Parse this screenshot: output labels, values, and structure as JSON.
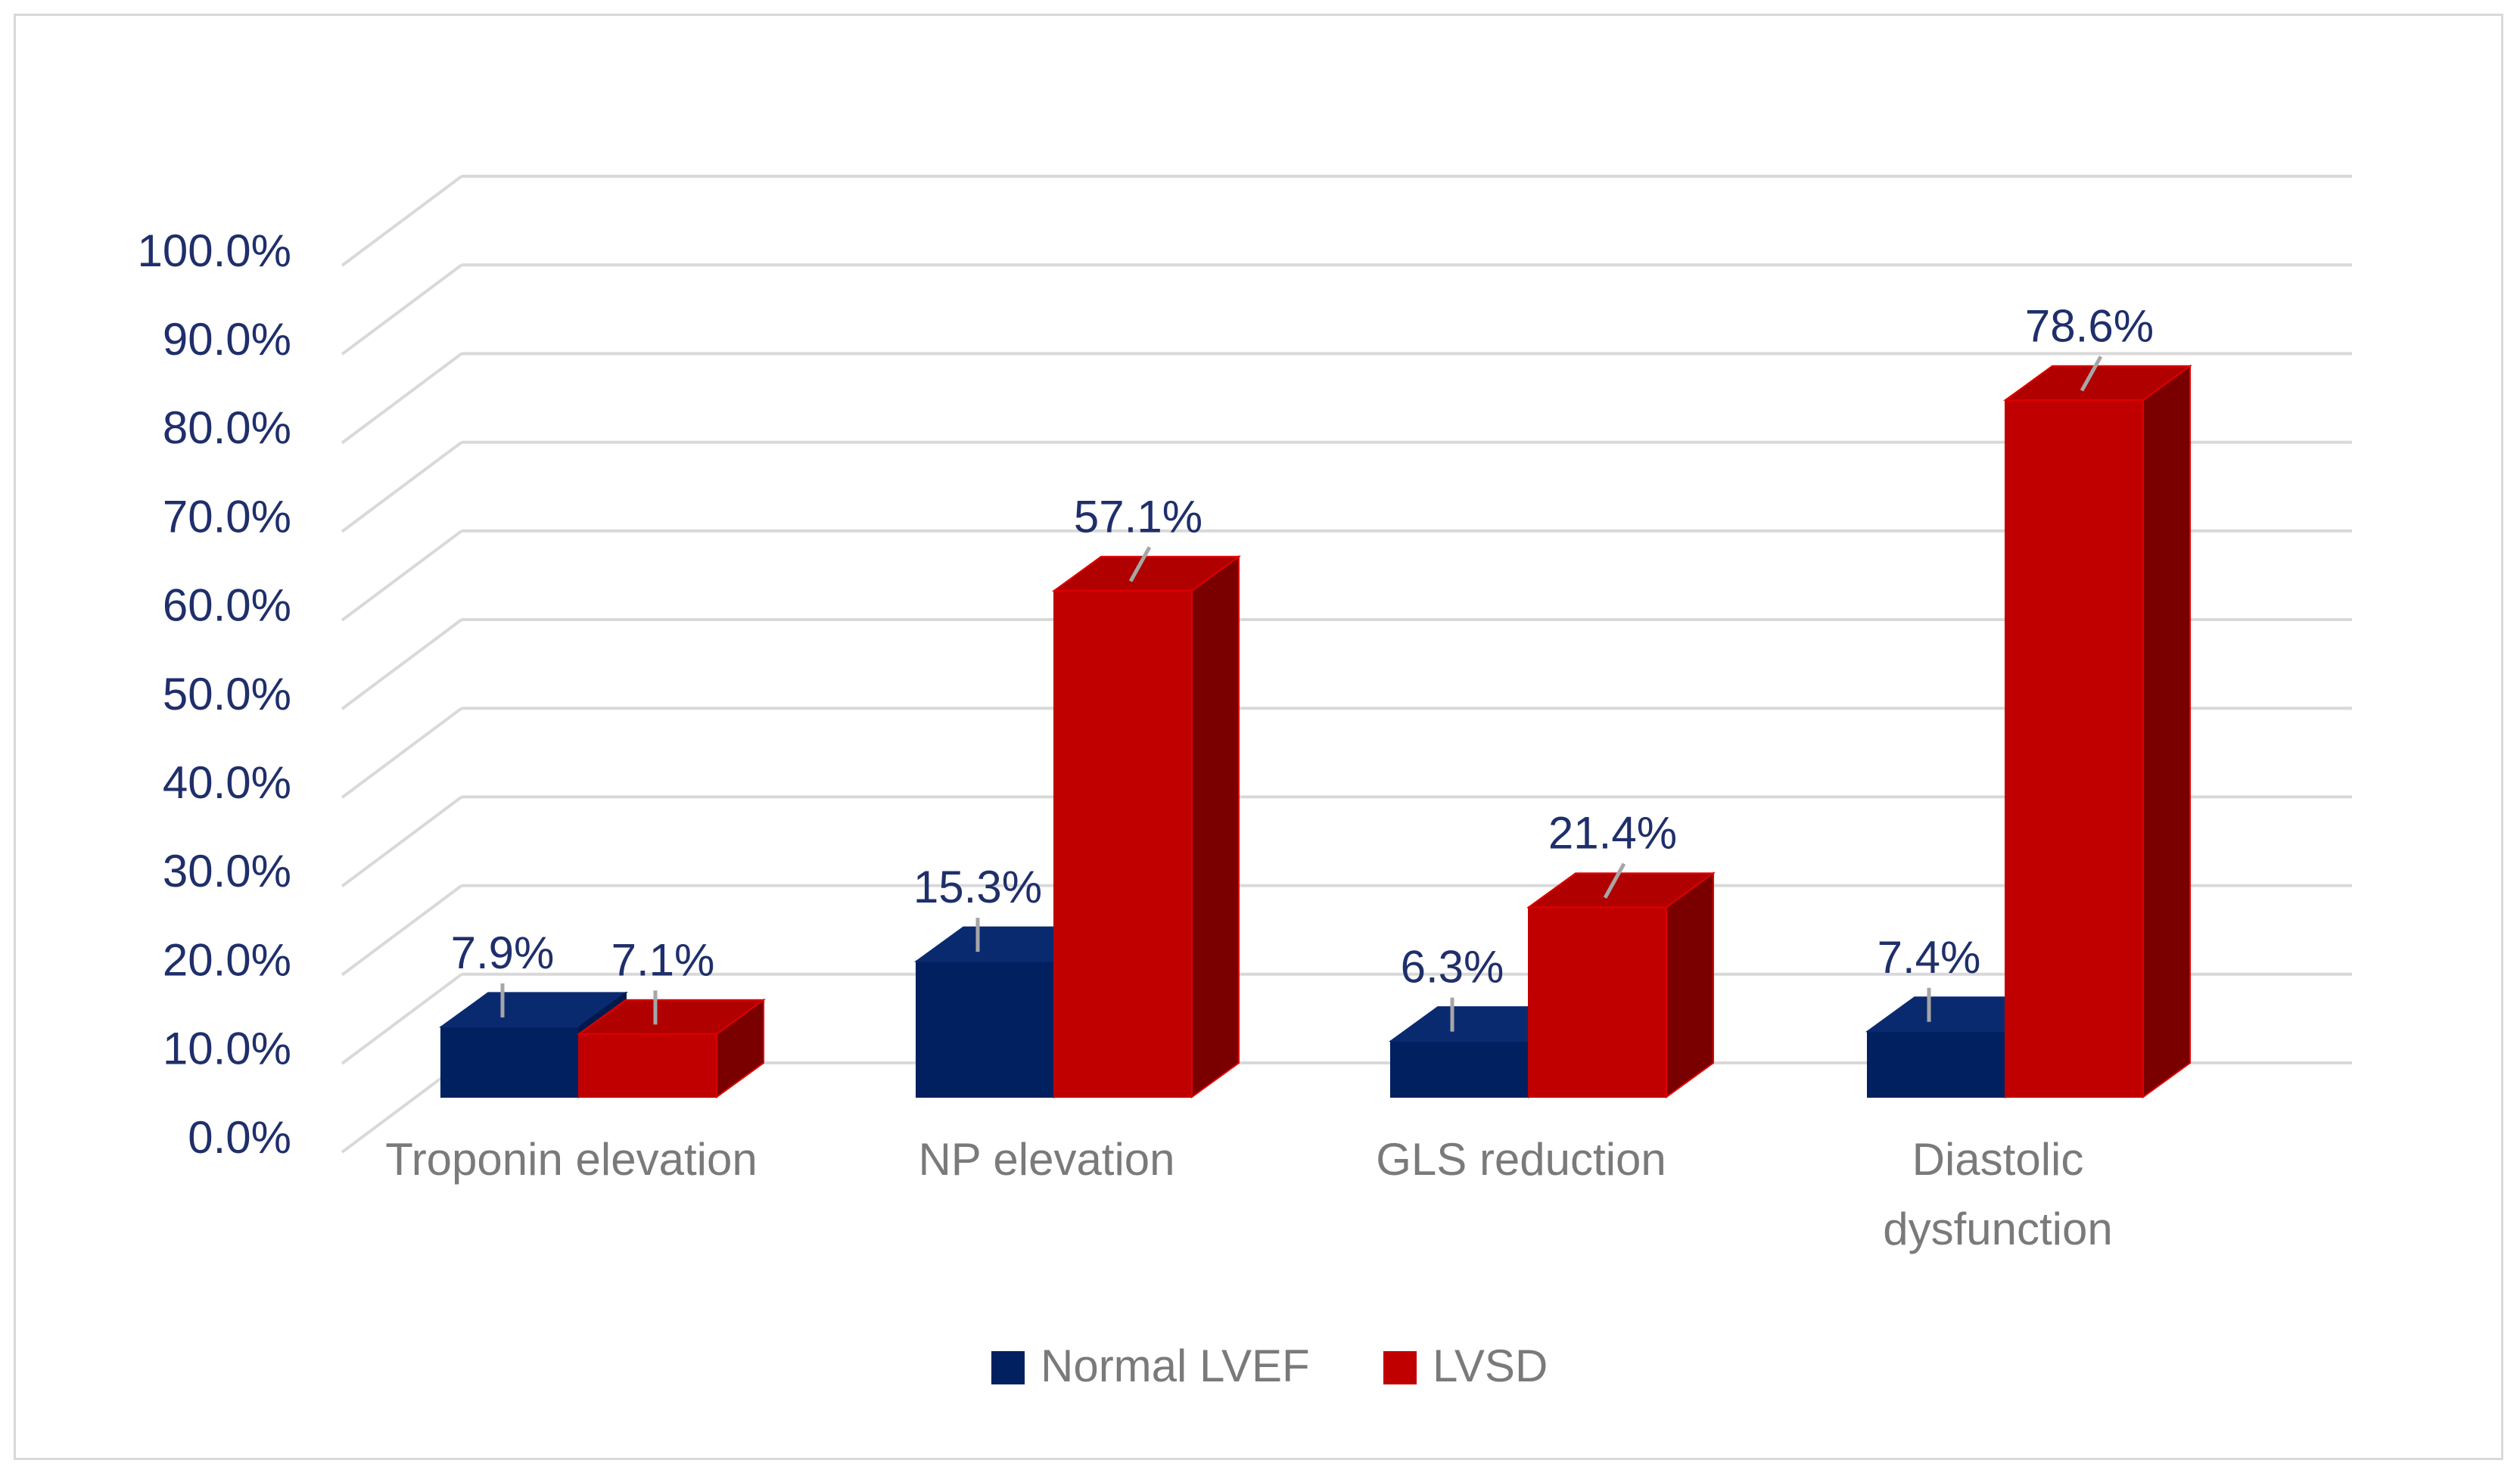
{
  "chart_data": {
    "type": "bar",
    "style": "3d-clustered-column",
    "title": "",
    "xlabel": "",
    "ylabel": "",
    "categories": [
      "Troponin elevation",
      "NP elevation",
      "GLS reduction",
      "Diastolic dysfunction"
    ],
    "category_lines": [
      [
        "Troponin elevation"
      ],
      [
        "NP elevation"
      ],
      [
        "GLS reduction"
      ],
      [
        "Diastolic",
        "dysfunction"
      ]
    ],
    "series": [
      {
        "name": "Normal LVEF",
        "values": [
          7.9,
          15.3,
          6.3,
          7.4
        ],
        "labels": [
          "7.9%",
          "15.3%",
          "6.3%",
          "7.4%"
        ],
        "color": "#002060",
        "top_color": "#0a2a70",
        "side_color": "#001a4d"
      },
      {
        "name": "LVSD",
        "values": [
          7.1,
          57.1,
          21.4,
          78.6
        ],
        "labels": [
          "7.1%",
          "57.1%",
          "21.4%",
          "78.6%"
        ],
        "color": "#c00000",
        "top_color": "#b00000",
        "side_color": "#7a0000"
      }
    ],
    "ylim": [
      0,
      100
    ],
    "yticks": [
      0,
      10,
      20,
      30,
      40,
      50,
      60,
      70,
      80,
      90,
      100
    ],
    "ytick_labels": [
      "0.0%",
      "10.0%",
      "20.0%",
      "30.0%",
      "40.0%",
      "50.0%",
      "60.0%",
      "70.0%",
      "80.0%",
      "90.0%",
      "100.0%"
    ],
    "grid": true,
    "legend_position": "bottom-center",
    "colors": {
      "grid": "#d9d9d9",
      "tick_text": "#1f2f6b",
      "category_text": "#7a7a7a",
      "leader": "#a6a6a6"
    }
  }
}
